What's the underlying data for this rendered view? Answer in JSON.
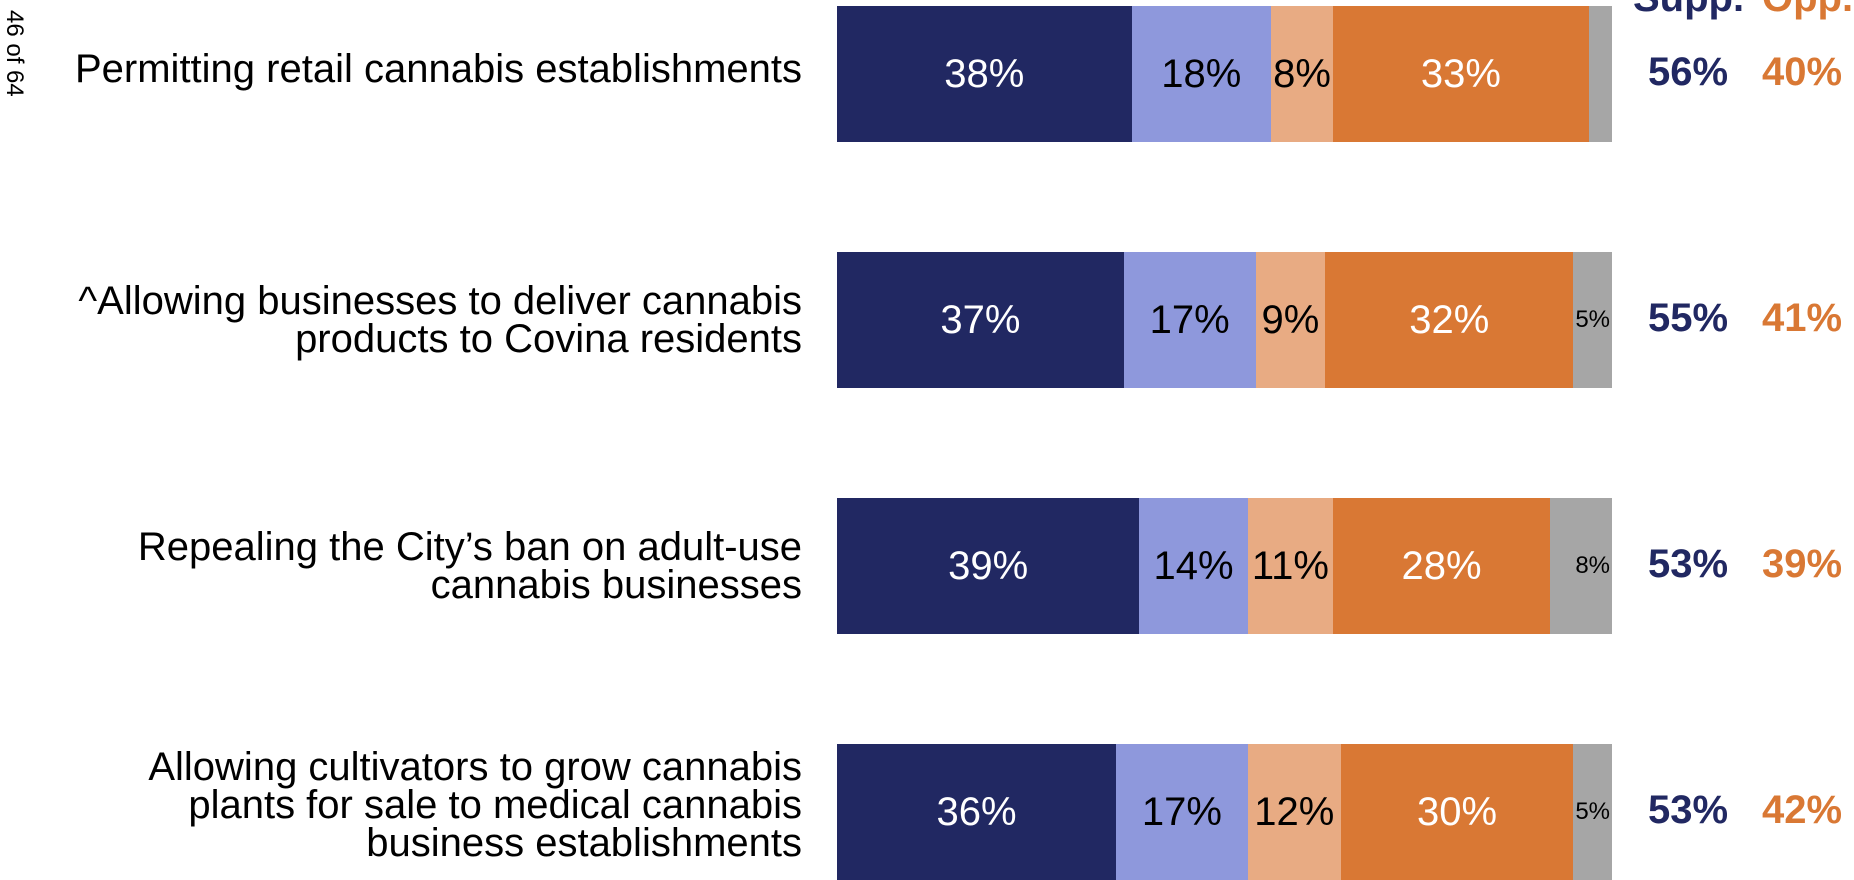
{
  "page_number": "46 of 64",
  "chart_data": {
    "type": "bar",
    "orientation": "horizontal",
    "stacked": true,
    "segment_colors": [
      "#212862",
      "#8e98dc",
      "#e8ab83",
      "#d97834",
      "#a6a6a6"
    ],
    "summary_headers": {
      "support": "Supp.",
      "oppose": "Opp."
    },
    "summary_colors": {
      "support": "#212862",
      "oppose": "#d97834"
    },
    "rows": [
      {
        "label_lines": [
          "Permitting retail cannabis establishments"
        ],
        "values": [
          38,
          18,
          8,
          33,
          3
        ],
        "labels": [
          "38%",
          "18%",
          "8%",
          "33%",
          ""
        ],
        "support": "56%",
        "oppose": "40%"
      },
      {
        "label_lines": [
          "^Allowing businesses to deliver cannabis",
          "products to Covina residents"
        ],
        "values": [
          37,
          17,
          9,
          32,
          5
        ],
        "labels": [
          "37%",
          "17%",
          "9%",
          "32%",
          "5%"
        ],
        "support": "55%",
        "oppose": "41%"
      },
      {
        "label_lines": [
          "Repealing the City’s ban on adult-use",
          "cannabis businesses"
        ],
        "values": [
          39,
          14,
          11,
          28,
          8
        ],
        "labels": [
          "39%",
          "14%",
          "11%",
          "28%",
          "8%"
        ],
        "support": "53%",
        "oppose": "39%"
      },
      {
        "label_lines": [
          "Allowing cultivators to grow cannabis",
          "plants for sale to medical cannabis",
          "business establishments"
        ],
        "values": [
          36,
          17,
          12,
          30,
          5
        ],
        "labels": [
          "36%",
          "17%",
          "12%",
          "30%",
          "5%"
        ],
        "support": "53%",
        "oppose": "42%"
      }
    ]
  }
}
